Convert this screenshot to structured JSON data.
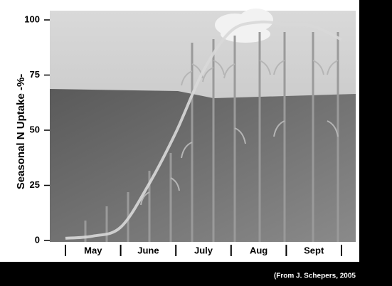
{
  "chart_data": {
    "type": "line",
    "y_label": "Seasonal N Uptake -%-",
    "source": "(From J. Schepers, 2005",
    "categories": [
      null,
      "May",
      null,
      "June",
      null,
      "July",
      null,
      "Aug",
      null,
      "Sept",
      null
    ],
    "series": [
      {
        "name": "N uptake",
        "color": "#d8d8d8",
        "values": [
          1,
          2,
          6,
          25,
          49,
          77,
          95,
          99,
          98,
          97,
          91
        ]
      }
    ],
    "ylim": [
      0,
      100
    ],
    "yticks": [
      0,
      25,
      50,
      75,
      100
    ]
  }
}
